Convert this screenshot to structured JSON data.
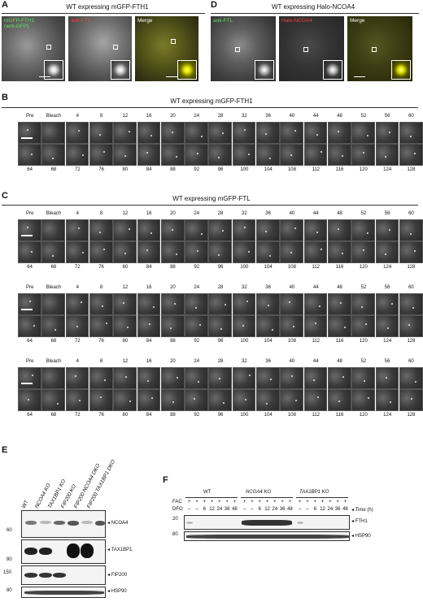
{
  "panels": {
    "A": {
      "letter": "A",
      "title": "WT expressing mGFP-FTH1",
      "images": [
        {
          "label_lines": [
            "mGFP-FTH1",
            "(anti-GFP)"
          ],
          "label_color": "#5fe35f",
          "tint": "gray"
        },
        {
          "label_lines": [
            "anti-FTL"
          ],
          "label_color": "#ff3b3b",
          "tint": "gray"
        },
        {
          "label_lines": [
            "Merge"
          ],
          "label_color": "#ffffff",
          "tint": "yellow"
        }
      ]
    },
    "D": {
      "letter": "D",
      "title": "WT expressing Halo-NCOA4",
      "images": [
        {
          "label_lines": [
            "anti-FTL"
          ],
          "label_color": "#5fe35f",
          "tint": "gray"
        },
        {
          "label_lines": [
            "Halo-NCOA4"
          ],
          "label_color": "#ff3b3b",
          "tint": "gray"
        },
        {
          "label_lines": [
            "Merge"
          ],
          "label_color": "#ffffff",
          "tint": "yellow"
        }
      ]
    },
    "B": {
      "letter": "B",
      "title": "WT expressing mGFP-FTH1",
      "top_labels": [
        "Pre",
        "Bleach",
        "4",
        "8",
        "12",
        "16",
        "20",
        "24",
        "28",
        "32",
        "36",
        "40",
        "44",
        "48",
        "52",
        "56",
        "60"
      ],
      "bottom_labels": [
        "64",
        "68",
        "72",
        "76",
        "80",
        "84",
        "88",
        "92",
        "96",
        "100",
        "104",
        "108",
        "112",
        "116",
        "120",
        "124",
        "128"
      ],
      "unit": "(s)"
    },
    "C": {
      "letter": "C",
      "title": "WT expressing mGFP-FTL",
      "top_labels": [
        "Pre",
        "Bleach",
        "4",
        "8",
        "12",
        "16",
        "20",
        "24",
        "28",
        "32",
        "36",
        "40",
        "44",
        "48",
        "52",
        "56",
        "60"
      ],
      "bottom_labels": [
        "64",
        "68",
        "72",
        "76",
        "80",
        "84",
        "88",
        "92",
        "96",
        "100",
        "104",
        "108",
        "112",
        "116",
        "120",
        "124",
        "128"
      ],
      "unit": "(s)"
    },
    "E": {
      "letter": "E",
      "lanes": [
        "WT",
        "NCOA4 KO",
        "TAX1BP1 KO",
        "FIP200 KO",
        "FIP200 NCOA4 DKO",
        "FIP200 TAX1BP1 DKO"
      ],
      "blots": [
        {
          "name": "NCOA4",
          "marker": "60"
        },
        {
          "name": "TAX1BP1",
          "marker": "80"
        },
        {
          "name": "FIP200",
          "marker": "150"
        },
        {
          "name": "HSP90",
          "marker": "80"
        }
      ]
    },
    "F": {
      "letter": "F",
      "groups": [
        "WT",
        "NCOA4 KO",
        "TAX1BP1 KO"
      ],
      "fac_label": "FAC",
      "dfo_label": "DFO",
      "fac_values": [
        "+",
        "+",
        "+",
        "+",
        "+",
        "+",
        "+"
      ],
      "dfo_values": [
        "–",
        "–",
        "6",
        "12",
        "24",
        "36",
        "48"
      ],
      "time_label": "Time (h)",
      "blots": [
        {
          "name": "FTH1",
          "marker": "20"
        },
        {
          "name": "HSP90",
          "marker": "80"
        }
      ]
    }
  }
}
